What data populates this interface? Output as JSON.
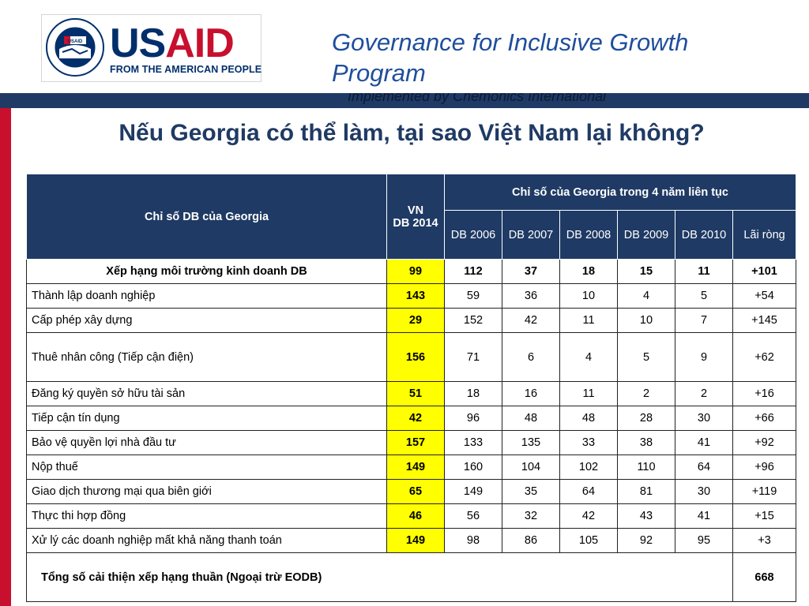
{
  "header": {
    "logo_top": "USAID",
    "logo_us": "US",
    "logo_aid": "AID",
    "logo_tagline": "FROM THE AMERICAN PEOPLE",
    "seal_text": "UNITED STATES AGENCY · INTERNATIONAL DEVELOPMENT",
    "program_title": "Governance for Inclusive Growth Program",
    "program_subtitle": "Implemented by Chemonics International"
  },
  "title": "Nếu Georgia có thể làm, tại sao Việt Nam lại không?",
  "table": {
    "header_label": "Chỉ số DB của Georgia",
    "header_vn_line1": "VN",
    "header_vn_line2": "DB 2014",
    "header_group": "Chỉ số của Georgia trong 4 năm liên tục",
    "columns": [
      "DB 2006",
      "DB 2007",
      "DB 2008",
      "DB 2009",
      "DB 2010",
      "Lãi ròng"
    ],
    "rows": [
      {
        "label": "Xếp hạng môi trường kinh doanh DB",
        "vn": "99",
        "values": [
          "112",
          "37",
          "18",
          "15",
          "11",
          "+101"
        ]
      },
      {
        "label": "Thành lập doanh nghiệp",
        "vn": "143",
        "values": [
          "59",
          "36",
          "10",
          "4",
          "5",
          "+54"
        ]
      },
      {
        "label": "Cấp phép xây dựng",
        "vn": "29",
        "values": [
          "152",
          "42",
          "11",
          "10",
          "7",
          "+145"
        ]
      },
      {
        "label": "Thuê nhân công (Tiếp cận điện)",
        "vn": "156",
        "values": [
          "71",
          "6",
          "4",
          "5",
          "9",
          "+62"
        ]
      },
      {
        "label": "Đăng ký quyền sở hữu tài sản",
        "vn": "51",
        "values": [
          "18",
          "16",
          "11",
          "2",
          "2",
          "+16"
        ]
      },
      {
        "label": "Tiếp cận tín dụng",
        "vn": "42",
        "values": [
          "96",
          "48",
          "48",
          "28",
          "30",
          "+66"
        ]
      },
      {
        "label": "Bảo vệ quyền lợi nhà đầu tư",
        "vn": "157",
        "values": [
          "133",
          "135",
          "33",
          "38",
          "41",
          "+92"
        ]
      },
      {
        "label": "Nộp thuế",
        "vn": "149",
        "values": [
          "160",
          "104",
          "102",
          "110",
          "64",
          "+96"
        ]
      },
      {
        "label": "Giao dịch thương mại qua biên giới",
        "vn": "65",
        "values": [
          "149",
          "35",
          "64",
          "81",
          "30",
          "+119"
        ]
      },
      {
        "label": "Thực thi hợp đồng",
        "vn": "46",
        "values": [
          "56",
          "32",
          "42",
          "43",
          "41",
          "+15"
        ]
      },
      {
        "label": "Xử lý các doanh nghiệp mất khả năng thanh toán",
        "vn": "149",
        "values": [
          "98",
          "86",
          "105",
          "92",
          "95",
          "+3"
        ]
      }
    ],
    "total_label": "Tổng số cải thiện xếp hạng thuần (Ngoại trừ EODB)",
    "total_value": "668"
  }
}
